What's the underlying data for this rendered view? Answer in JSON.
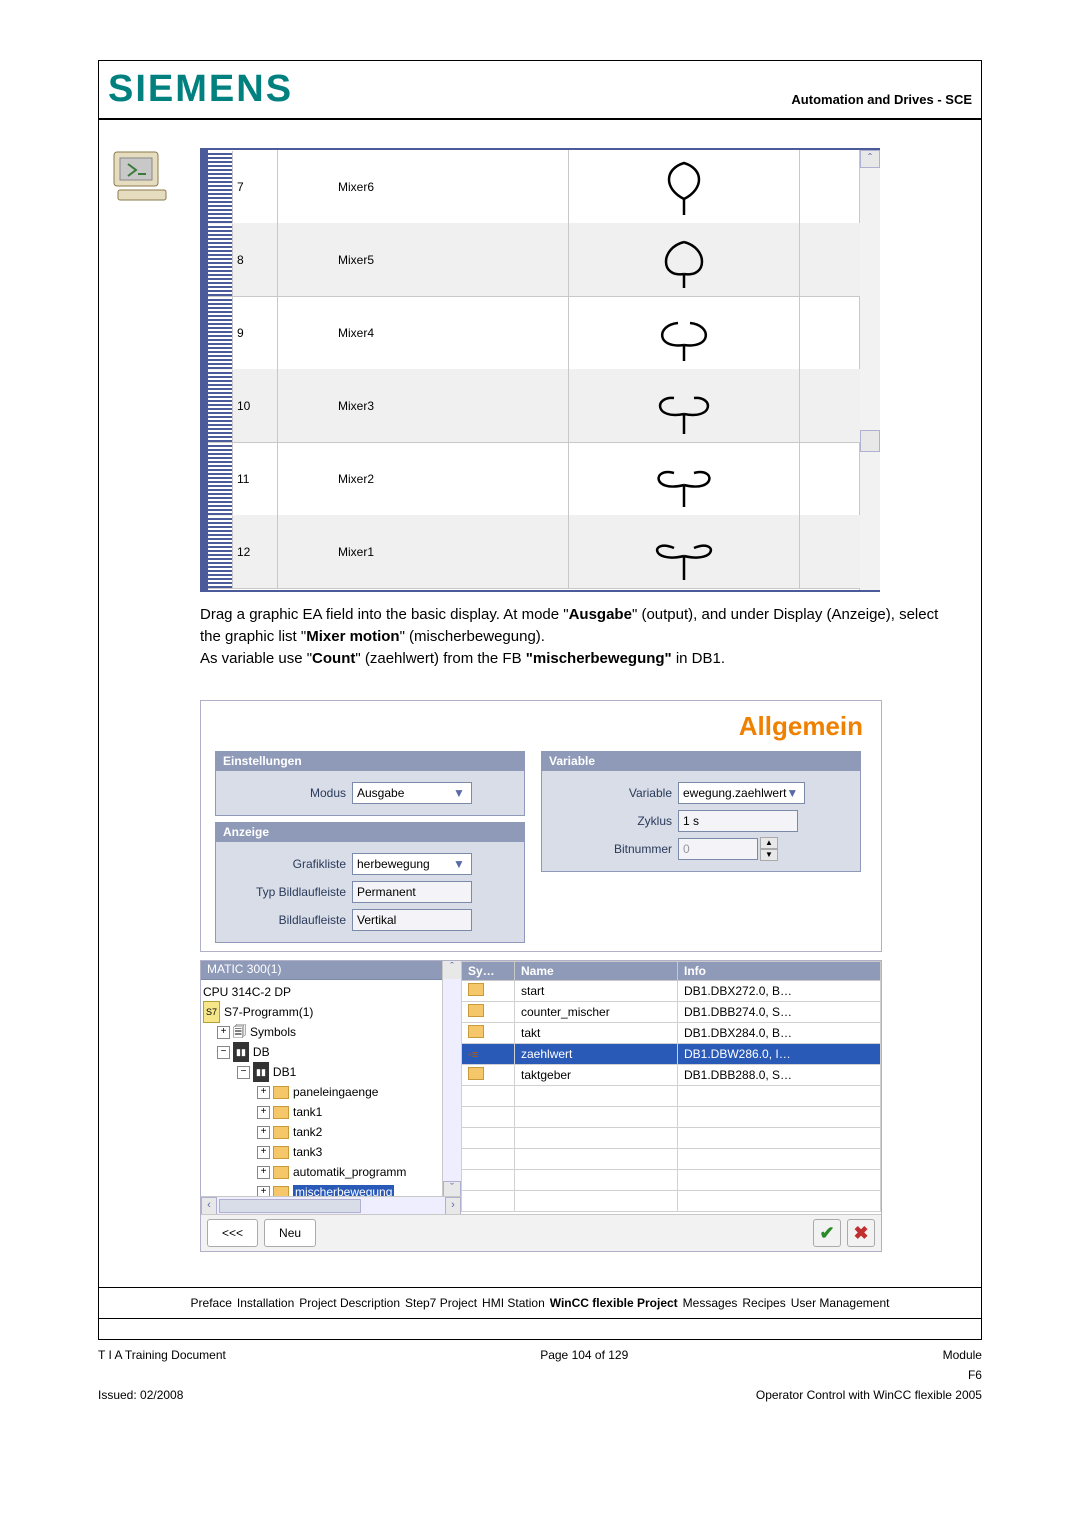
{
  "header": {
    "logo": "SIEMENS",
    "right": "Automation and Drives - SCE"
  },
  "mixer_table": {
    "rows": [
      {
        "n": "7",
        "name": "Mixer6",
        "glyph": "g0",
        "alt": false
      },
      {
        "n": "8",
        "name": "Mixer5",
        "glyph": "g1",
        "alt": true
      },
      {
        "n": "9",
        "name": "Mixer4",
        "glyph": "g2",
        "alt": false
      },
      {
        "n": "10",
        "name": "Mixer3",
        "glyph": "g3",
        "alt": true
      },
      {
        "n": "11",
        "name": "Mixer2",
        "glyph": "g4",
        "alt": false
      },
      {
        "n": "12",
        "name": "Mixer1",
        "glyph": "g5",
        "alt": true
      }
    ]
  },
  "body": {
    "p": "Drag a graphic EA field into the basic display. At mode \"<b>Ausgabe</b>\" (output), and under Display (Anzeige), select the graphic list \"<b>Mixer motion</b>\" (mischerbewegung).<br>As variable use \"<b>Count</b>\" (zaehlwert) from the FB <b>\"mischerbewegung\"</b> in DB1."
  },
  "panel": {
    "title": "Allgemein",
    "left": {
      "h1": "Einstellungen",
      "modus_l": "Modus",
      "modus_v": "Ausgabe",
      "h2": "Anzeige",
      "gl_l": "Grafikliste",
      "gl_v": "herbewegung",
      "tb_l": "Typ Bildlaufleiste",
      "tb_v": "Permanent",
      "bl_l": "Bildlaufleiste",
      "bl_v": "Vertikal"
    },
    "right": {
      "h": "Variable",
      "var_l": "Variable",
      "var_v": "ewegung.zaehlwert",
      "zy_l": "Zyklus",
      "zy_v": "1 s",
      "bn_l": "Bitnummer",
      "bn_v": "0"
    }
  },
  "browser": {
    "tree_hdr": "MATIC 300(1)",
    "tree": [
      {
        "ind": 0,
        "sq": "",
        "ic": "",
        "t": "CPU 314C-2 DP"
      },
      {
        "ind": 0,
        "sq": "",
        "ic": "s7",
        "t": "S7-Programm(1)"
      },
      {
        "ind": 14,
        "sq": "+",
        "ic": "sym",
        "t": "Symbols"
      },
      {
        "ind": 14,
        "sq": "−",
        "ic": "db",
        "t": "DB"
      },
      {
        "ind": 34,
        "sq": "−",
        "ic": "db",
        "t": "DB1"
      },
      {
        "ind": 54,
        "sq": "+",
        "ic": "fold",
        "t": "paneleingaenge"
      },
      {
        "ind": 54,
        "sq": "+",
        "ic": "fold",
        "t": "tank1"
      },
      {
        "ind": 54,
        "sq": "+",
        "ic": "fold",
        "t": "tank2"
      },
      {
        "ind": 54,
        "sq": "+",
        "ic": "fold",
        "t": "tank3"
      },
      {
        "ind": 54,
        "sq": "+",
        "ic": "fold",
        "t": "automatik_programm"
      },
      {
        "ind": 54,
        "sq": "+",
        "ic": "fold",
        "t": "mischerbewegung",
        "sel": true
      }
    ],
    "cols": {
      "sy": "Sy…",
      "name": "Name",
      "info": "Info"
    },
    "rows": [
      {
        "sy": "fold",
        "name": "start",
        "info": "DB1.DBX272.0, B…"
      },
      {
        "sy": "fold",
        "name": "counter_mischer",
        "info": "DB1.DBB274.0, S…"
      },
      {
        "sy": "fold",
        "name": "takt",
        "info": "DB1.DBX284.0, B…"
      },
      {
        "sy": "tag",
        "name": "zaehlwert",
        "info": "DB1.DBW286.0, I…",
        "sel": true
      },
      {
        "sy": "fold",
        "name": "taktgeber",
        "info": "DB1.DBB288.0, S…"
      }
    ],
    "buttons": {
      "back": "<<<",
      "neu": "Neu"
    }
  },
  "crumb": [
    {
      "t": "Preface",
      "b": false
    },
    {
      "t": "Installation",
      "b": false
    },
    {
      "t": "Project Description",
      "b": false
    },
    {
      "t": "Step7 Project",
      "b": false
    },
    {
      "t": "HMI Station",
      "b": false
    },
    {
      "t": "WinCC flexible Project",
      "b": true
    },
    {
      "t": "Messages",
      "b": false
    },
    {
      "t": "Recipes",
      "b": false
    },
    {
      "t": "User Management",
      "b": false
    }
  ],
  "footer": {
    "l1a": "T I A  Training Document",
    "l1b": "Page 104 of 129",
    "l1c": "Module",
    "l2c": "F6",
    "l3a": "Issued: 02/2008",
    "l3c": "Operator Control with WinCC flexible 2005"
  }
}
